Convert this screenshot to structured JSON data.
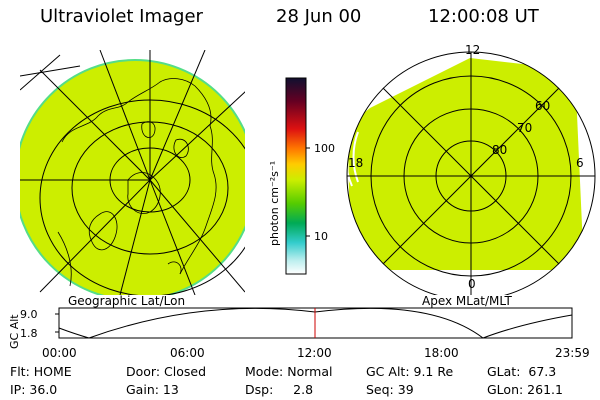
{
  "header": {
    "instrument": "Ultraviolet Imager",
    "date": "28 Jun 00",
    "time": "12:00:08 UT"
  },
  "panels": {
    "left_label": "Geographic Lat/Lon",
    "right_label": "Apex MLat/MLT"
  },
  "polar_plot": {
    "mlt_labels": {
      "top": "12",
      "left": "18",
      "right": "6",
      "bottom": "0"
    },
    "lat_labels": [
      "60",
      "70",
      "80"
    ]
  },
  "colorbar": {
    "unit_label": "photon cm⁻²s⁻¹",
    "ticks": [
      "100",
      "10"
    ]
  },
  "timeline": {
    "ylabel": "GC Alt",
    "ticks": [
      "9.0",
      "1.8"
    ],
    "time_labels": [
      "00:00",
      "06:00",
      "12:00",
      "18:00",
      "23:59"
    ]
  },
  "info": {
    "row1": {
      "flt": "Flt: HOME",
      "door": "Door: Closed",
      "mode": "Mode: Normal",
      "gcalt": "GC Alt: 9.1 Re",
      "glat": "GLat:  67.3"
    },
    "row2": {
      "ip": "IP: 36.0",
      "gain": "Gain: 13",
      "dsp": "Dsp:     2.8",
      "seq": "Seq: 39",
      "glon": "GLon: 261.1"
    }
  },
  "colors": {
    "fill": "#ccee00",
    "cursor": "#cc0000"
  }
}
